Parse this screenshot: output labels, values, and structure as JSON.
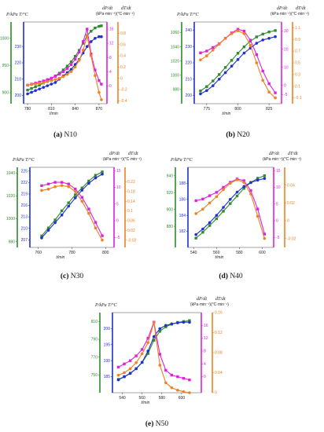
{
  "colors": {
    "P": "#2e8b2e",
    "T": "#1f2fd0",
    "dPdt": "#e020e0",
    "dTdt": "#f08020"
  },
  "chart_data": [
    {
      "id": "N10",
      "type": "line",
      "caption": {
        "label": "(a)",
        "name": "N10"
      },
      "header_left": "P/kPa  T/°C",
      "header_dP": "dP/dt (kPa·min⁻¹)",
      "header_dT": "dT/dt (°C·min⁻¹)",
      "xlabel": "t/min",
      "xlim": [
        775,
        880
      ],
      "xticks": [
        780,
        810,
        840,
        870
      ],
      "P_axis": {
        "ylim": [
          880,
          1030
        ],
        "ticks": [
          900,
          950,
          1000
        ]
      },
      "T_axis": {
        "ylim": [
          195,
          245
        ],
        "ticks": [
          200,
          210,
          220,
          230
        ]
      },
      "dP_axis": {
        "ylim": [
          -5,
          18
        ],
        "ticks": [
          0,
          4,
          8,
          12,
          16
        ]
      },
      "dT_axis": {
        "ylim": [
          -0.45,
          1.0
        ],
        "ticks": [
          -0.4,
          -0.2,
          0.0,
          0.2,
          0.4,
          0.6,
          0.8
        ]
      },
      "series": [
        {
          "name": "P",
          "axis": "P",
          "x": [
            780,
            785,
            790,
            795,
            800,
            805,
            810,
            815,
            820,
            825,
            830,
            835,
            840,
            845,
            850,
            855,
            860,
            865,
            870,
            873
          ],
          "y": [
            905,
            908,
            911,
            914,
            918,
            922,
            926,
            931,
            936,
            942,
            949,
            957,
            967,
            978,
            991,
            1005,
            1013,
            1019,
            1022,
            1023
          ]
        },
        {
          "name": "T",
          "axis": "T",
          "x": [
            780,
            785,
            790,
            795,
            800,
            805,
            810,
            815,
            820,
            825,
            830,
            835,
            840,
            845,
            850,
            855,
            860,
            865,
            870,
            873
          ],
          "y": [
            201,
            202,
            203,
            204,
            205,
            206,
            207,
            208,
            210,
            212,
            214,
            216,
            219,
            222,
            226,
            230,
            233,
            235,
            236,
            236
          ]
        },
        {
          "name": "dP/dt",
          "axis": "dP",
          "x": [
            780,
            785,
            790,
            795,
            800,
            805,
            810,
            815,
            820,
            825,
            830,
            835,
            840,
            845,
            850,
            855,
            860,
            865,
            870,
            873
          ],
          "y": [
            0.2,
            0.5,
            0.8,
            1.1,
            1.4,
            1.8,
            2.2,
            2.7,
            3.3,
            4.0,
            4.9,
            6.0,
            7.5,
            9.5,
            12.5,
            16.0,
            9.0,
            4.5,
            1.5,
            0.5
          ]
        },
        {
          "name": "dT/dt",
          "axis": "dT",
          "x": [
            780,
            785,
            790,
            795,
            800,
            805,
            810,
            815,
            820,
            825,
            830,
            835,
            840,
            845,
            850,
            855,
            860,
            865,
            870,
            873
          ],
          "y": [
            -0.12,
            -0.11,
            -0.1,
            -0.09,
            -0.08,
            -0.06,
            -0.04,
            -0.02,
            0.0,
            0.03,
            0.07,
            0.12,
            0.2,
            0.32,
            0.5,
            0.75,
            0.4,
            0.05,
            -0.25,
            -0.38
          ]
        }
      ]
    },
    {
      "id": "N20",
      "type": "line",
      "caption": {
        "label": "(b)",
        "name": "N20"
      },
      "header_left": "P/kPa  T/°C",
      "header_dP": "dP/dt (kPa·min⁻¹)",
      "header_dT": "dT/dt (°C·min⁻¹)",
      "xlabel": "t/min",
      "xlim": [
        765,
        835
      ],
      "xticks": [
        775,
        800,
        825,
        850
      ],
      "P_axis": {
        "ylim": [
          960,
          1075
        ],
        "ticks": [
          980,
          1000,
          1020,
          1040,
          1060
        ]
      },
      "T_axis": {
        "ylim": [
          195,
          245
        ],
        "ticks": [
          200,
          210,
          220,
          230,
          240
        ]
      },
      "dP_axis": {
        "ylim": [
          -10,
          35
        ],
        "ticks": [
          -5,
          0,
          10,
          20,
          30
        ]
      },
      "dT_axis": {
        "ylim": [
          -0.2,
          1.2
        ],
        "ticks": [
          -0.1,
          0.1,
          0.3,
          0.5,
          0.7,
          0.9,
          1.1
        ]
      },
      "series": [
        {
          "name": "P",
          "axis": "P",
          "x": [
            770,
            775,
            780,
            785,
            790,
            795,
            800,
            805,
            810,
            815,
            820,
            825,
            830
          ],
          "y": [
            978,
            984,
            992,
            1001,
            1011,
            1021,
            1031,
            1040,
            1048,
            1054,
            1058,
            1061,
            1063
          ]
        },
        {
          "name": "T",
          "axis": "T",
          "x": [
            770,
            775,
            780,
            785,
            790,
            795,
            800,
            805,
            810,
            815,
            820,
            825,
            830
          ],
          "y": [
            201,
            203,
            206,
            210,
            214,
            218,
            222,
            226,
            229,
            232,
            234,
            235,
            236
          ]
        },
        {
          "name": "dP/dt",
          "axis": "dP",
          "x": [
            770,
            775,
            780,
            785,
            790,
            795,
            800,
            805,
            810,
            815,
            820,
            825,
            830
          ],
          "y": [
            18,
            19,
            21,
            23,
            26,
            29,
            31,
            30,
            25,
            17,
            8,
            1,
            -4
          ]
        },
        {
          "name": "dT/dt",
          "axis": "dT",
          "x": [
            770,
            775,
            780,
            785,
            790,
            795,
            800,
            805,
            810,
            815,
            820,
            825,
            830
          ],
          "y": [
            0.55,
            0.62,
            0.72,
            0.82,
            0.92,
            1.0,
            1.05,
            1.0,
            0.8,
            0.5,
            0.2,
            0.0,
            -0.1
          ]
        }
      ]
    },
    {
      "id": "N30",
      "type": "line",
      "caption": {
        "label": "(c)",
        "name": "N30"
      },
      "header_left": "P/kPa  T/°C",
      "header_dP": "dP/dt (kPa·min⁻¹)",
      "header_dT": "dT/dt (°C·min⁻¹)",
      "xlabel": "t/min",
      "xlim": [
        755,
        805
      ],
      "xticks": [
        760,
        780,
        800
      ],
      "P_axis": {
        "ylim": [
          975,
          1045
        ],
        "ticks": [
          980,
          1000,
          1020,
          1040
        ]
      },
      "T_axis": {
        "ylim": [
          205,
          226
        ],
        "ticks": [
          207,
          210,
          213,
          216,
          219,
          222,
          225
        ]
      },
      "dP_axis": {
        "ylim": [
          -8,
          16
        ],
        "ticks": [
          -5,
          0,
          5,
          10,
          15
        ]
      },
      "dT_axis": {
        "ylim": [
          -0.05,
          0.28
        ],
        "ticks": [
          -0.02,
          0.02,
          0.06,
          0.1,
          0.14,
          0.18,
          0.22
        ]
      },
      "series": [
        {
          "name": "P",
          "axis": "P",
          "x": [
            762,
            766,
            770,
            774,
            778,
            782,
            786,
            790,
            794,
            798
          ],
          "y": [
            985,
            992,
            999,
            1007,
            1014,
            1021,
            1027,
            1033,
            1038,
            1041
          ]
        },
        {
          "name": "T",
          "axis": "T",
          "x": [
            762,
            766,
            770,
            774,
            778,
            782,
            786,
            790,
            794,
            798
          ],
          "y": [
            207.5,
            209.5,
            211.5,
            213.5,
            215.8,
            218,
            220,
            221.8,
            223.2,
            224.2
          ]
        },
        {
          "name": "dP/dt",
          "axis": "dP",
          "x": [
            762,
            766,
            770,
            774,
            778,
            782,
            786,
            790,
            794,
            798
          ],
          "y": [
            10.5,
            11,
            11.5,
            11.5,
            11,
            9.5,
            7,
            3.5,
            -0.5,
            -4.5
          ]
        },
        {
          "name": "dT/dt",
          "axis": "dT",
          "x": [
            762,
            766,
            770,
            774,
            778,
            782,
            786,
            790,
            794,
            798
          ],
          "y": [
            0.185,
            0.19,
            0.2,
            0.205,
            0.2,
            0.18,
            0.14,
            0.09,
            0.03,
            -0.02
          ]
        }
      ]
    },
    {
      "id": "N40",
      "type": "line",
      "caption": {
        "label": "(d)",
        "name": "N40"
      },
      "header_left": "P/kPa  T/°C",
      "header_dP": "dP/dt (kPa·min⁻¹)",
      "header_dT": "dT/dt (°C·min⁻¹)",
      "xlabel": "t/min",
      "xlim": [
        535,
        610
      ],
      "xticks": [
        540,
        560,
        580,
        600
      ],
      "P_axis": {
        "ylim": [
          855,
          950
        ],
        "ticks": [
          880,
          900,
          920,
          940
        ]
      },
      "T_axis": {
        "ylim": [
          180,
          190
        ],
        "ticks": [
          182,
          184,
          186,
          188
        ]
      },
      "dP_axis": {
        "ylim": [
          -8,
          16
        ],
        "ticks": [
          -5,
          0,
          5,
          10,
          15
        ]
      },
      "dT_axis": {
        "ylim": [
          -0.03,
          0.06
        ],
        "ticks": [
          -0.02,
          0.0,
          0.02,
          0.04
        ]
      },
      "series": [
        {
          "name": "P",
          "axis": "P",
          "x": [
            542,
            548,
            554,
            560,
            566,
            572,
            578,
            584,
            590,
            596,
            602
          ],
          "y": [
            866,
            873,
            881,
            889,
            898,
            907,
            916,
            925,
            932,
            937,
            940
          ]
        },
        {
          "name": "T",
          "axis": "T",
          "x": [
            542,
            548,
            554,
            560,
            566,
            572,
            578,
            584,
            590,
            596,
            602
          ],
          "y": [
            181.6,
            182.3,
            183.1,
            184.0,
            185.0,
            186.0,
            186.9,
            187.6,
            188.1,
            188.4,
            188.6
          ]
        },
        {
          "name": "dP/dt",
          "axis": "dP",
          "x": [
            542,
            548,
            554,
            560,
            566,
            572,
            578,
            584,
            590,
            596,
            602
          ],
          "y": [
            6,
            6.5,
            7.5,
            8.5,
            10,
            11.5,
            12.5,
            12,
            9,
            3.5,
            -4
          ]
        },
        {
          "name": "dT/dt",
          "axis": "dT",
          "x": [
            542,
            548,
            554,
            560,
            566,
            572,
            578,
            584,
            590,
            596,
            602
          ],
          "y": [
            0.008,
            0.013,
            0.02,
            0.027,
            0.035,
            0.042,
            0.046,
            0.043,
            0.03,
            0.005,
            -0.02
          ]
        }
      ]
    },
    {
      "id": "N50",
      "type": "line",
      "caption": {
        "label": "(e)",
        "name": "N50"
      },
      "header_left": "P/kPa  T/°C",
      "header_dP": "dP/dt (kPa·min⁻¹)",
      "header_dT": "dT/dt (°C·min⁻¹)",
      "xlabel": "t/min",
      "xlim": [
        530,
        620
      ],
      "xticks": [
        540,
        560,
        580,
        600
      ],
      "P_axis": {
        "ylim": [
          730,
          820
        ],
        "ticks": [
          750,
          770,
          790,
          810
        ]
      },
      "T_axis": {
        "ylim": [
          180,
          205
        ],
        "ticks": [
          185,
          190,
          195,
          200
        ]
      },
      "dP_axis": {
        "ylim": [
          -5,
          20
        ],
        "ticks": [
          0,
          4,
          8,
          12,
          16
        ]
      },
      "dT_axis": {
        "ylim": [
          0.0,
          0.16
        ],
        "ticks": [
          0.0,
          0.04,
          0.08,
          0.12,
          0.16
        ]
      },
      "series": [
        {
          "name": "P",
          "axis": "P",
          "x": [
            536,
            542,
            548,
            554,
            560,
            566,
            572,
            578,
            584,
            590,
            596,
            602,
            608
          ],
          "y": [
            745,
            748,
            752,
            757,
            764,
            774,
            789,
            799,
            804,
            807,
            809,
            810,
            811
          ]
        },
        {
          "name": "T",
          "axis": "T",
          "x": [
            536,
            542,
            548,
            554,
            560,
            566,
            572,
            578,
            584,
            590,
            596,
            602,
            608
          ],
          "y": [
            184,
            185,
            186,
            187.5,
            189.5,
            193,
            197.5,
            200,
            201,
            201.5,
            201.8,
            202,
            202
          ]
        },
        {
          "name": "dP/dt",
          "axis": "dP",
          "x": [
            536,
            542,
            548,
            554,
            560,
            566,
            572,
            578,
            584,
            590,
            596,
            602,
            608
          ],
          "y": [
            3,
            4,
            5,
            6.5,
            8.5,
            12,
            17,
            7,
            2,
            0.5,
            0,
            -0.5,
            -1
          ]
        },
        {
          "name": "dT/dt",
          "axis": "dT",
          "x": [
            536,
            542,
            548,
            554,
            560,
            566,
            572,
            578,
            584,
            590,
            596,
            602,
            608
          ],
          "y": [
            0.035,
            0.04,
            0.048,
            0.06,
            0.078,
            0.1,
            0.14,
            0.055,
            0.02,
            0.01,
            0.005,
            0.002,
            0.0
          ]
        }
      ]
    }
  ]
}
